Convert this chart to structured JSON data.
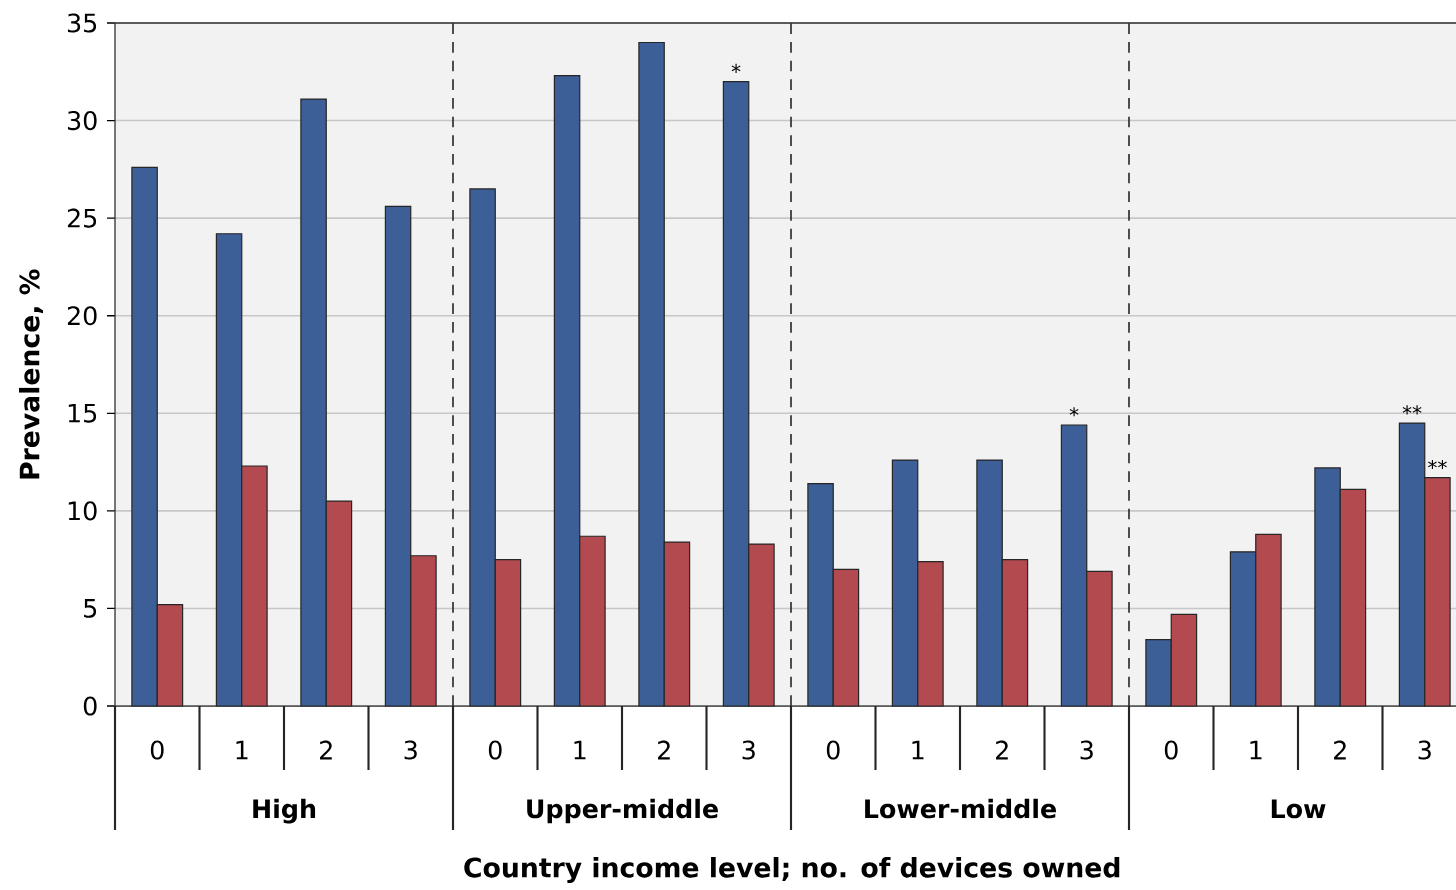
{
  "chart_data": {
    "type": "bar",
    "xlabel": "Country income level; no. of devices owned",
    "ylabel": "Prevalence, %",
    "categories": [
      "0",
      "1",
      "2",
      "3",
      "0",
      "1",
      "2",
      "3",
      "0",
      "1",
      "2",
      "3",
      "0",
      "1",
      "2",
      "3"
    ],
    "series": [
      {
        "color": "#3c5f98",
        "values": [
          27.6,
          24.2,
          31.1,
          25.6,
          26.5,
          32.3,
          34.0,
          32.0,
          11.4,
          12.6,
          12.6,
          14.4,
          3.4,
          7.9,
          12.2,
          14.5
        ]
      },
      {
        "color": "#b24a4f",
        "values": [
          5.2,
          12.3,
          10.5,
          7.7,
          7.5,
          8.7,
          8.4,
          8.3,
          7.0,
          7.4,
          7.5,
          6.9,
          4.7,
          8.8,
          11.1,
          11.7
        ]
      }
    ],
    "ylim": [
      0,
      35
    ],
    "yticks": [
      0,
      5,
      10,
      15,
      20,
      25,
      30,
      35
    ],
    "grid": "y",
    "annotations": [
      "High",
      "Upper-middle",
      "Lower-middle",
      "Low",
      {
        "text": "*",
        "y": 32.0
      },
      {
        "text": "*",
        "y": 14.4
      },
      {
        "text": "**",
        "y": 14.5
      },
      {
        "text": "**",
        "y": 11.7
      }
    ]
  }
}
